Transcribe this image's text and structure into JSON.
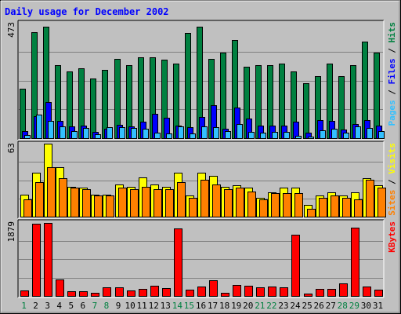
{
  "chart_data": {
    "type": "bar",
    "title": "Daily usage for December 2002",
    "categories": [
      "1",
      "2",
      "3",
      "4",
      "5",
      "6",
      "7",
      "8",
      "9",
      "10",
      "11",
      "12",
      "13",
      "14",
      "15",
      "16",
      "17",
      "18",
      "19",
      "20",
      "21",
      "22",
      "23",
      "24",
      "25",
      "26",
      "27",
      "28",
      "29",
      "30",
      "31"
    ],
    "weekend_days": [
      "1",
      "7",
      "8",
      "14",
      "15",
      "21",
      "22",
      "28",
      "29"
    ],
    "panels": [
      {
        "name": "hits-files-pages",
        "max_label": "473",
        "ymax": 473,
        "ylabel_parts": [
          {
            "text": "Pages",
            "color": "#33c0ff"
          },
          {
            "text": " / ",
            "color": "#000000"
          },
          {
            "text": "Files",
            "color": "#0000ff"
          },
          {
            "text": " / ",
            "color": "#000000"
          },
          {
            "text": "Hits",
            "color": "#008040"
          }
        ],
        "series": [
          {
            "name": "Hits",
            "color": "#008040",
            "values": [
              202,
              433,
              457,
              300,
              275,
              285,
              245,
              280,
              325,
              300,
              330,
              332,
              322,
              305,
              430,
              458,
              325,
              350,
              403,
              292,
              298,
              298,
              305,
              275,
              225,
              255,
              305,
              255,
              300,
              395,
              350
            ]
          },
          {
            "name": "Files",
            "color": "#0000ff",
            "values": [
              28,
              90,
              148,
              70,
              48,
              50,
              25,
              38,
              55,
              48,
              68,
              100,
              85,
              50,
              45,
              88,
              135,
              40,
              125,
              82,
              50,
              50,
              50,
              68,
              22,
              75,
              72,
              35,
              58,
              75,
              52
            ]
          },
          {
            "name": "Pages",
            "color": "#33c0ff",
            "values": [
              12,
              95,
              72,
              48,
              28,
              42,
              15,
              45,
              45,
              42,
              38,
              22,
              18,
              48,
              18,
              48,
              46,
              30,
              58,
              26,
              22,
              25,
              25,
              10,
              8,
              32,
              40,
              22,
              48,
              42,
              30
            ]
          }
        ]
      },
      {
        "name": "visits-sites",
        "max_label": "63",
        "ymax": 63,
        "ylabel_parts": [
          {
            "text": "Sites",
            "color": "#ff8000"
          },
          {
            "text": " / ",
            "color": "#000000"
          },
          {
            "text": "Visits",
            "color": "#ffff00"
          }
        ],
        "series": [
          {
            "name": "Visits",
            "color": "#ffff00",
            "values": [
              19,
              38,
              63,
              43,
              26,
              25,
              19,
              19,
              28,
              26,
              34,
              28,
              26,
              38,
              18,
              38,
              35,
              26,
              27,
              25,
              16,
              21,
              25,
              25,
              10,
              18,
              21,
              18,
              21,
              33,
              27
            ]
          },
          {
            "name": "Sites",
            "color": "#ff8000",
            "values": [
              15,
              30,
              43,
              33,
              25,
              24,
              18,
              18,
              25,
              24,
              26,
              24,
              24,
              30,
              16,
              32,
              28,
              24,
              25,
              22,
              15,
              20,
              20,
              20,
              7,
              16,
              18,
              16,
              15,
              32,
              25
            ]
          }
        ]
      },
      {
        "name": "kbytes",
        "max_label": "1879",
        "ymax": 1879,
        "ylabel_parts": [
          {
            "text": "KBytes",
            "color": "#ff0000"
          }
        ],
        "series": [
          {
            "name": "KBytes",
            "color": "#ff0000",
            "values": [
              140,
              1830,
              1850,
              420,
              110,
              110,
              80,
              220,
              220,
              140,
              180,
              260,
              200,
              1720,
              150,
              230,
              400,
              80,
              280,
              260,
              210,
              230,
              210,
              1550,
              60,
              170,
              170,
              310,
              1740,
              230,
              150
            ]
          }
        ]
      }
    ]
  }
}
